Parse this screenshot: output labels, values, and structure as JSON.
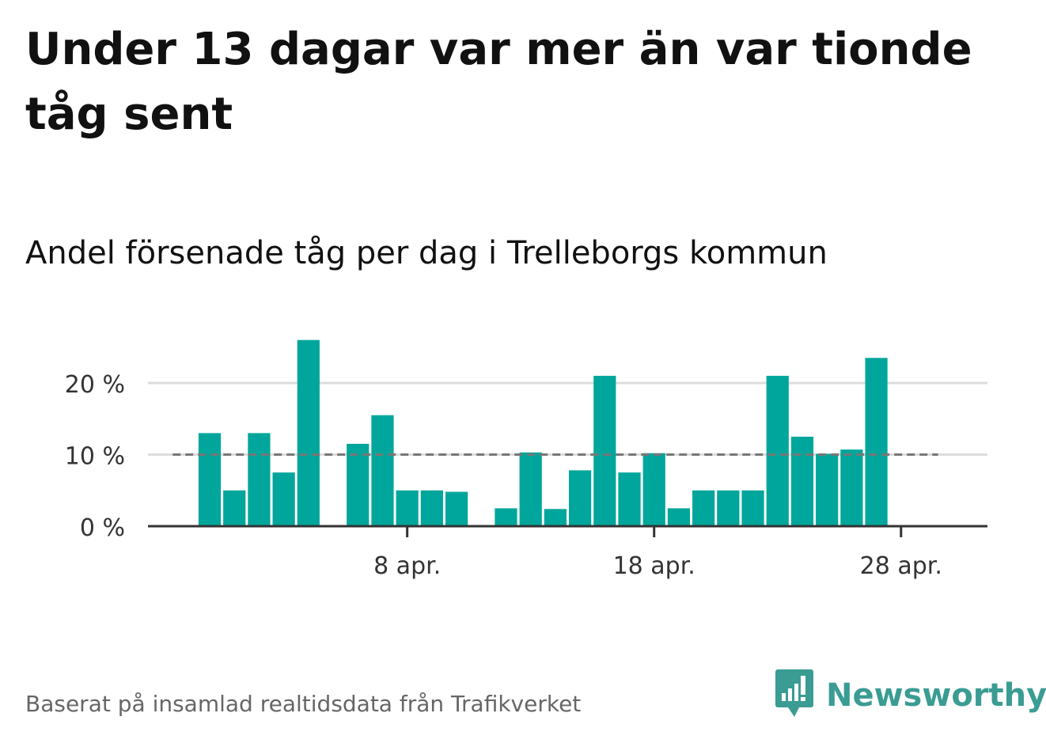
{
  "title": "Under 13 dagar var mer än var tionde tåg sent",
  "subtitle": "Andel försenade tåg per dag i Trelleborgs kommun",
  "source": "Baserat på insamlad realtidsdata från Trafikverket",
  "brand": {
    "name": "Newsworthy",
    "icon": "newsworthy-logo-icon",
    "color": "#3a9c93"
  },
  "colors": {
    "bar": "#00a69b",
    "reference_line": "#777777",
    "grid": "#dddddd",
    "axis": "#333333"
  },
  "chart_data": {
    "type": "bar",
    "x": [
      -1,
      0,
      1,
      2,
      3,
      4,
      5,
      6,
      7,
      8,
      9,
      10,
      11,
      12,
      13,
      14,
      15,
      16,
      17,
      18,
      19,
      20,
      21,
      22,
      23,
      24,
      25,
      26,
      27,
      28,
      29
    ],
    "values": [
      0,
      13,
      5,
      13,
      7.5,
      26,
      0,
      11.5,
      15.5,
      5,
      5,
      4.8,
      0,
      2.5,
      10.3,
      2.4,
      7.8,
      21,
      7.5,
      10.2,
      2.5,
      5,
      5,
      5,
      21,
      12.5,
      10.1,
      10.7,
      23.5,
      0,
      0
    ],
    "x_domain": [
      -2.5,
      31.5
    ],
    "x_ticks": [
      {
        "x": 8,
        "label": "8 apr."
      },
      {
        "x": 18,
        "label": "18 apr."
      },
      {
        "x": 28,
        "label": "28 apr."
      }
    ],
    "y_ticks": [
      {
        "y": 0,
        "label": "0 %"
      },
      {
        "y": 10,
        "label": "10 %"
      },
      {
        "y": 20,
        "label": "20 %"
      }
    ],
    "ylim": [
      0,
      26
    ],
    "reference_line": {
      "y": 10,
      "x_from": -1,
      "x_to": 29,
      "style": "dashed"
    },
    "grid": true
  }
}
